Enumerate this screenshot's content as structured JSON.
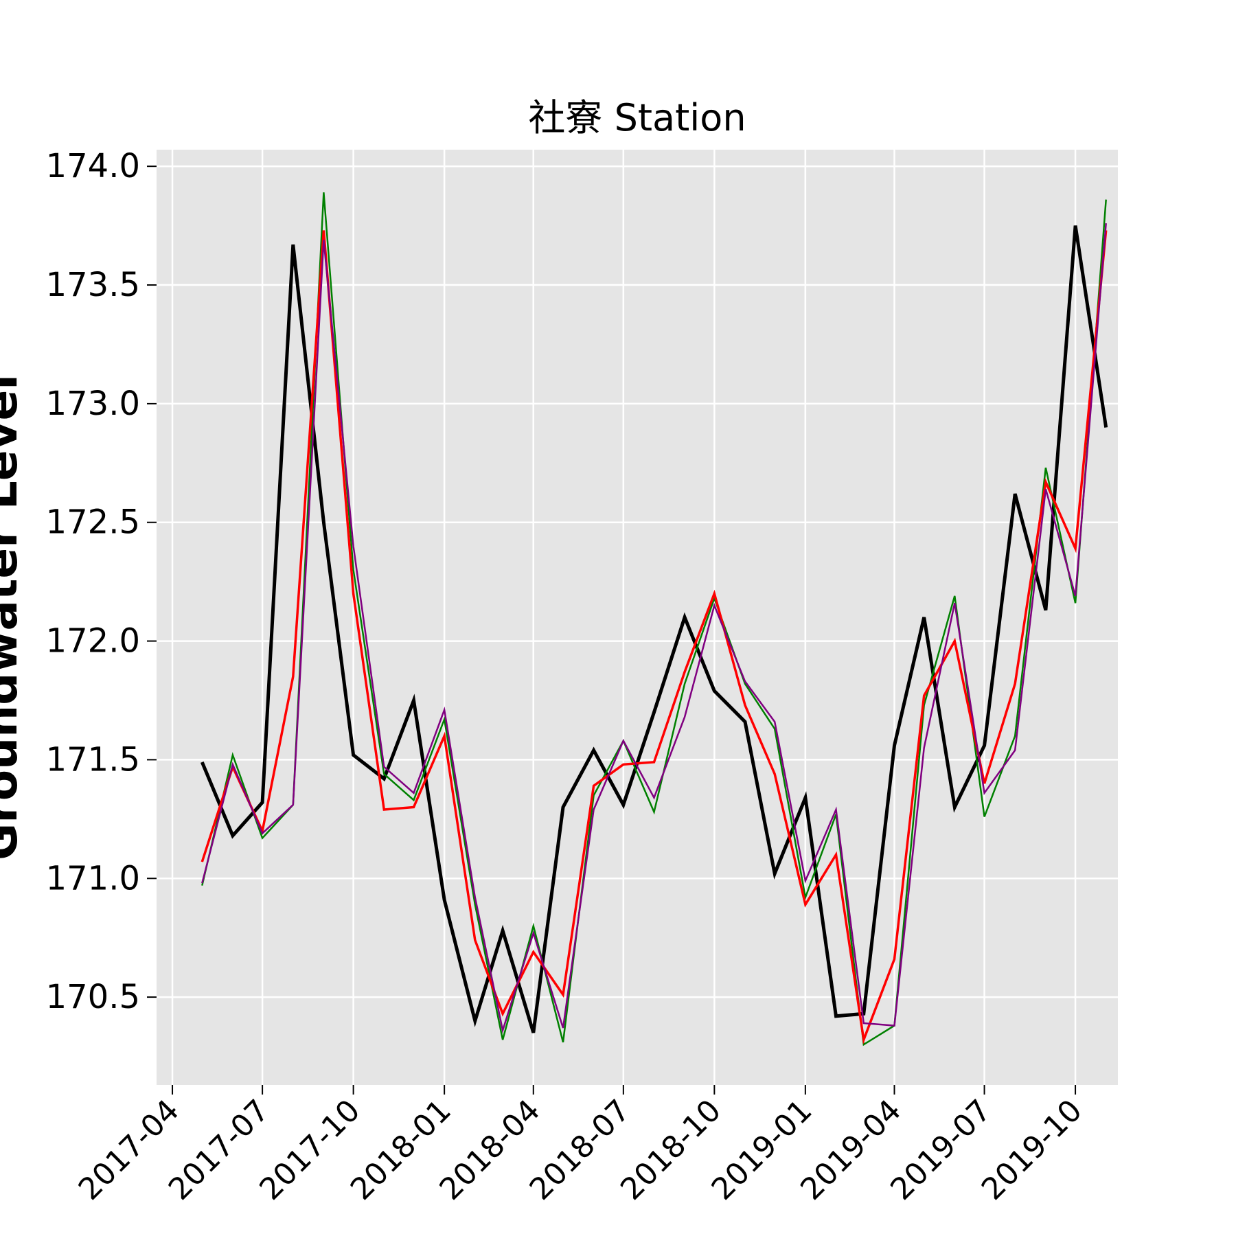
{
  "chart_data": {
    "type": "line",
    "title": "社寮 Station",
    "ylabel": "Groundwater Level",
    "xlabel": "",
    "grid": true,
    "ylim": [
      170.13,
      174.07
    ],
    "xlim": [
      "2017-03-16",
      "2019-11-13"
    ],
    "x_ticks": [
      "2017-04",
      "2017-07",
      "2017-10",
      "2018-01",
      "2018-04",
      "2018-07",
      "2018-10",
      "2019-01",
      "2019-04",
      "2019-07",
      "2019-10"
    ],
    "y_ticks": [
      "170.5",
      "171.0",
      "171.5",
      "172.0",
      "172.5",
      "173.0",
      "173.5",
      "174.0"
    ],
    "x": [
      "2017-05-01",
      "2017-06-01",
      "2017-07-01",
      "2017-08-01",
      "2017-09-01",
      "2017-10-01",
      "2017-11-01",
      "2017-12-01",
      "2018-01-01",
      "2018-02-01",
      "2018-03-01",
      "2018-04-01",
      "2018-05-01",
      "2018-06-01",
      "2018-07-01",
      "2018-08-01",
      "2018-09-01",
      "2018-10-01",
      "2018-11-01",
      "2018-12-01",
      "2019-01-01",
      "2019-02-01",
      "2019-03-01",
      "2019-04-01",
      "2019-05-01",
      "2019-06-01",
      "2019-07-01",
      "2019-08-01",
      "2019-09-01",
      "2019-10-01",
      "2019-11-01"
    ],
    "series": [
      {
        "color": "#000000",
        "width": 5,
        "values": [
          171.49,
          171.18,
          171.32,
          173.67,
          172.5,
          171.52,
          171.42,
          171.75,
          170.91,
          170.4,
          170.78,
          170.35,
          171.3,
          171.54,
          171.31,
          171.7,
          172.1,
          171.79,
          171.66,
          171.02,
          171.34,
          170.42,
          170.43,
          171.56,
          172.1,
          171.3,
          171.56,
          172.62,
          172.13,
          173.75,
          172.9
        ]
      },
      {
        "color": "#008000",
        "width": 2.5,
        "values": [
          170.97,
          171.52,
          171.17,
          171.31,
          173.89,
          172.3,
          171.44,
          171.33,
          171.67,
          170.89,
          170.32,
          170.8,
          170.31,
          171.35,
          171.58,
          171.28,
          171.82,
          172.18,
          171.82,
          171.63,
          170.92,
          171.27,
          170.3,
          170.38,
          171.73,
          172.19,
          171.26,
          171.6,
          172.73,
          172.16,
          173.86
        ]
      },
      {
        "color": "#ff0000",
        "width": 3.5,
        "values": [
          171.07,
          171.47,
          171.2,
          171.85,
          173.73,
          172.2,
          171.29,
          171.3,
          171.6,
          170.74,
          170.43,
          170.69,
          170.51,
          171.39,
          171.48,
          171.49,
          171.87,
          172.2,
          171.73,
          171.44,
          170.89,
          171.1,
          170.32,
          170.66,
          171.77,
          172.0,
          171.4,
          171.82,
          172.67,
          172.39,
          173.73
        ]
      },
      {
        "color": "#800080",
        "width": 2.5,
        "values": [
          170.98,
          171.48,
          171.19,
          171.31,
          173.69,
          172.4,
          171.47,
          171.36,
          171.71,
          170.92,
          170.36,
          170.77,
          170.37,
          171.29,
          171.58,
          171.34,
          171.68,
          172.15,
          171.83,
          171.66,
          170.99,
          171.29,
          170.39,
          170.38,
          171.55,
          172.16,
          171.36,
          171.54,
          172.64,
          172.19,
          173.76
        ]
      }
    ]
  }
}
